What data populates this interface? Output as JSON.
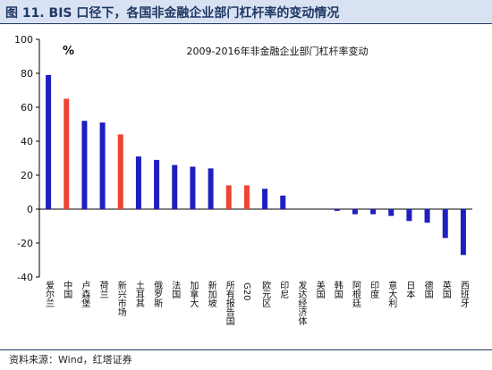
{
  "header": {
    "title": "图 11. BIS 口径下，各国非金融企业部门杠杆率的变动情况"
  },
  "footer": {
    "source": "资料来源：Wind，红塔证券"
  },
  "chart_data": {
    "type": "bar",
    "title": "2009-2016年非金融企业部门杠杆率变动",
    "unit_label": "%",
    "ylim": [
      -40,
      100
    ],
    "yticks": [
      -40,
      -20,
      0,
      20,
      40,
      60,
      80,
      100
    ],
    "grid": false,
    "legend": "none",
    "colors": {
      "default": "#1f1fbf",
      "highlight": "#ee4433"
    },
    "categories": [
      "爱尔兰",
      "中国",
      "卢森堡",
      "荷兰",
      "新兴市场",
      "土耳其",
      "俄罗斯",
      "法国",
      "加拿大",
      "新加坡",
      "所有报告国",
      "G20",
      "欧元区",
      "印尼",
      "发达经济体",
      "美国",
      "韩国",
      "阿根廷",
      "印度",
      "意大利",
      "日本",
      "德国",
      "英国",
      "西班牙"
    ],
    "values": [
      79,
      65,
      52,
      51,
      44,
      31,
      29,
      26,
      25,
      24,
      14,
      14,
      12,
      8,
      0,
      0,
      -1,
      -3,
      -3,
      -4,
      -7,
      -8,
      -17,
      -27
    ],
    "highlight": [
      false,
      true,
      false,
      false,
      true,
      false,
      false,
      false,
      false,
      false,
      true,
      true,
      false,
      false,
      false,
      false,
      false,
      false,
      false,
      false,
      false,
      false,
      false,
      false
    ]
  }
}
